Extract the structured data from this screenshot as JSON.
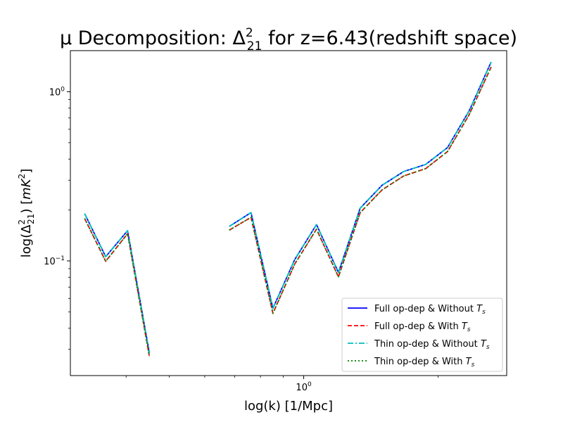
{
  "chart_data": {
    "type": "line",
    "title": "μ Decomposition: Δ²₂₁ for z=6.43(redshift space)",
    "xlabel": "log(k) [1/Mpc]",
    "ylabel": "log(Δ²₂₁) [mK²]",
    "xscale": "log",
    "yscale": "log",
    "xlim": [
      0.3,
      2.85
    ],
    "ylim": [
      0.021,
      1.75
    ],
    "xticks": [
      {
        "value": 1.0,
        "label": "10⁰"
      }
    ],
    "yticks": [
      {
        "value": 0.1,
        "label": "10⁻¹"
      },
      {
        "value": 1.0,
        "label": "10⁰"
      }
    ],
    "grid": false,
    "legend_position": "lower-right",
    "series": [
      {
        "name": "Full op-dep & Without Ts",
        "legend_label": "Full op-dep & Without ",
        "legend_symbol": "Ts",
        "color": "#0000ff",
        "dash": "solid",
        "segments": [
          {
            "x": [
              0.323,
              0.36,
              0.403,
              0.451
            ],
            "y": [
              0.19,
              0.106,
              0.151,
              0.0285
            ]
          },
          {
            "x": [
              0.681,
              0.762,
              0.853,
              0.955,
              1.068,
              1.196,
              1.338,
              1.498,
              1.676,
              1.876,
              2.1,
              2.35,
              2.63
            ],
            "y": [
              0.16,
              0.193,
              0.0525,
              0.102,
              0.164,
              0.0855,
              0.205,
              0.28,
              0.338,
              0.372,
              0.468,
              0.775,
              1.5
            ]
          }
        ]
      },
      {
        "name": "Full op-dep & With Ts",
        "legend_label": "Full op-dep & With ",
        "legend_symbol": "Ts",
        "color": "#ff0000",
        "dash": "dashed",
        "segments": [
          {
            "x": [
              0.323,
              0.36,
              0.403,
              0.451
            ],
            "y": [
              0.178,
              0.0995,
              0.145,
              0.0272
            ]
          },
          {
            "x": [
              0.681,
              0.762,
              0.853,
              0.955,
              1.068,
              1.196,
              1.338,
              1.498,
              1.676,
              1.876,
              2.1,
              2.35,
              2.63
            ],
            "y": [
              0.152,
              0.181,
              0.049,
              0.096,
              0.154,
              0.0805,
              0.193,
              0.263,
              0.318,
              0.351,
              0.443,
              0.735,
              1.4
            ]
          }
        ]
      },
      {
        "name": "Thin op-dep & Without Ts",
        "legend_label": "Thin op-dep & Without ",
        "legend_symbol": "Ts",
        "color": "#00bfbf",
        "dash": "dashdot",
        "segments": [
          {
            "x": [
              0.323,
              0.36,
              0.403,
              0.451
            ],
            "y": [
              0.19,
              0.106,
              0.151,
              0.0285
            ]
          },
          {
            "x": [
              0.681,
              0.762,
              0.853,
              0.955,
              1.068,
              1.196,
              1.338,
              1.498,
              1.676,
              1.876,
              2.1,
              2.35,
              2.63
            ],
            "y": [
              0.16,
              0.193,
              0.0525,
              0.102,
              0.164,
              0.0855,
              0.205,
              0.28,
              0.338,
              0.372,
              0.468,
              0.775,
              1.5
            ]
          }
        ]
      },
      {
        "name": "Thin op-dep & With Ts",
        "legend_label": "Thin op-dep & With ",
        "legend_symbol": "Ts",
        "color": "#008000",
        "dash": "dotted",
        "segments": [
          {
            "x": [
              0.323,
              0.36,
              0.403,
              0.451
            ],
            "y": [
              0.178,
              0.0995,
              0.145,
              0.0272
            ]
          },
          {
            "x": [
              0.681,
              0.762,
              0.853,
              0.955,
              1.068,
              1.196,
              1.338,
              1.498,
              1.676,
              1.876,
              2.1,
              2.35,
              2.63
            ],
            "y": [
              0.152,
              0.181,
              0.049,
              0.096,
              0.154,
              0.0805,
              0.193,
              0.263,
              0.318,
              0.351,
              0.443,
              0.735,
              1.4
            ]
          }
        ]
      }
    ]
  }
}
